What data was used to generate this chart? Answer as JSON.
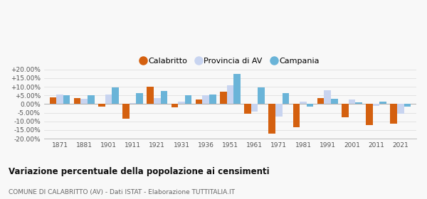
{
  "years": [
    1871,
    1881,
    1901,
    1911,
    1921,
    1931,
    1936,
    1951,
    1961,
    1971,
    1981,
    1991,
    2001,
    2011,
    2021
  ],
  "calabritto": [
    4.0,
    3.5,
    -1.5,
    -8.5,
    10.0,
    -2.0,
    2.5,
    7.0,
    -5.5,
    -17.0,
    -13.5,
    3.5,
    -7.5,
    -12.0,
    -11.5
  ],
  "provincia_av": [
    5.5,
    3.0,
    5.5,
    0.5,
    3.5,
    1.5,
    5.0,
    11.0,
    -4.5,
    -7.0,
    1.5,
    8.0,
    2.5,
    -1.0,
    -5.5
  ],
  "campania": [
    5.0,
    5.0,
    9.5,
    6.5,
    7.5,
    5.0,
    5.5,
    17.5,
    9.5,
    6.5,
    -1.5,
    3.0,
    1.0,
    1.5,
    -1.5
  ],
  "calabritto_color": "#d4600f",
  "provincia_color": "#c8d4f0",
  "campania_color": "#6ab4d8",
  "ylim": [
    -20,
    20
  ],
  "yticks": [
    -20,
    -15,
    -10,
    -5,
    0,
    5,
    10,
    15,
    20
  ],
  "ytick_labels": [
    "-20.00%",
    "-15.00%",
    "-10.00%",
    "-5.00%",
    "0.00%",
    "+5.00%",
    "+10.00%",
    "+15.00%",
    "+20.00%"
  ],
  "title": "Variazione percentuale della popolazione ai censimenti",
  "subtitle": "COMUNE DI CALABRITTO (AV) - Dati ISTAT - Elaborazione TUTTITALIA.IT",
  "legend_labels": [
    "Calabritto",
    "Provincia di AV",
    "Campania"
  ],
  "bar_width": 0.28,
  "background_color": "#f8f8f8",
  "grid_color": "#e0e0e0"
}
